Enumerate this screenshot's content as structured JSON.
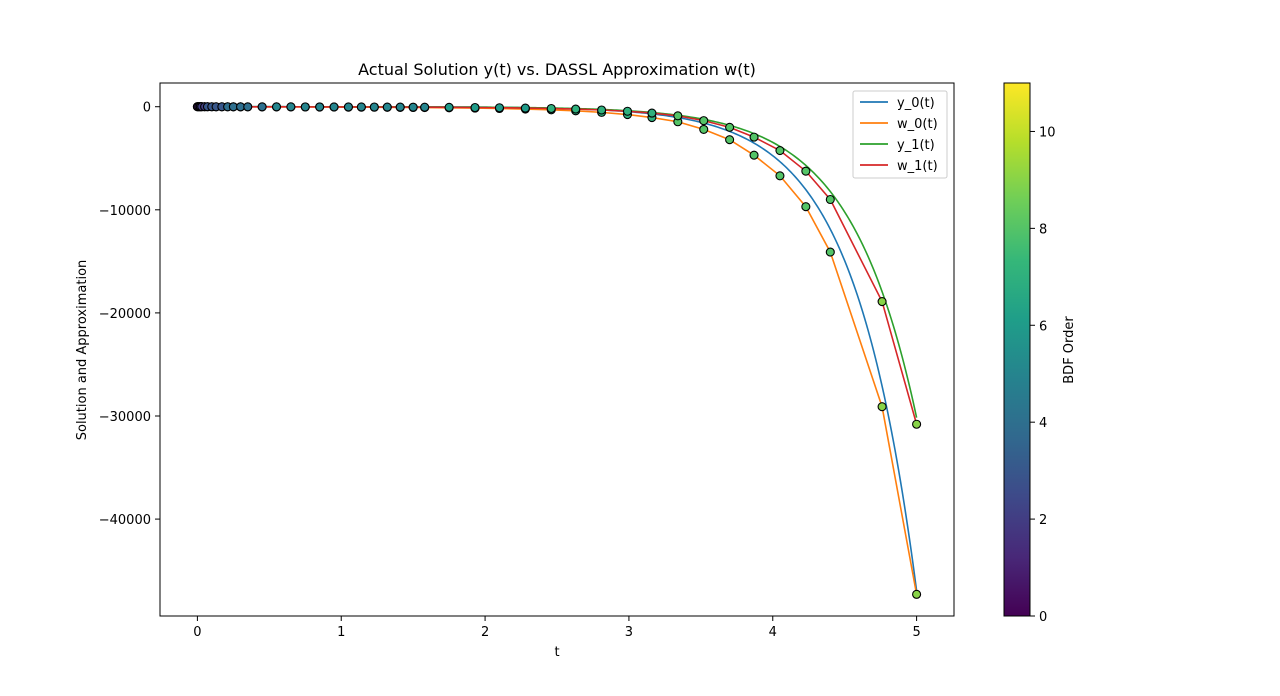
{
  "chart_data": {
    "type": "line",
    "title": "Actual Solution y(t) vs. DASSL Approximation w(t)",
    "xlabel": "t",
    "ylabel": "Solution and Approximation",
    "xlim": [
      -0.26,
      5.26
    ],
    "ylim": [
      -49400,
      2300
    ],
    "xticks": [
      0,
      1,
      2,
      3,
      4,
      5
    ],
    "yticks": [
      0,
      -10000,
      -20000,
      -30000,
      -40000
    ],
    "xtick_labels": [
      "0",
      "1",
      "2",
      "3",
      "4",
      "5"
    ],
    "ytick_labels": [
      "0",
      "−10000",
      "−20000",
      "−30000",
      "−40000"
    ],
    "legend_position": "top-right",
    "series": [
      {
        "name": "y_0(t)",
        "color": "#1f77b4",
        "curve": "y0"
      },
      {
        "name": "w_0(t)",
        "color": "#ff7f0e",
        "curve": "w0"
      },
      {
        "name": "y_1(t)",
        "color": "#2ca02c",
        "curve": "y1"
      },
      {
        "name": "w_1(t)",
        "color": "#d62728",
        "curve": "w1"
      }
    ],
    "steps": {
      "t": [
        0,
        0.01,
        0.02,
        0.03,
        0.05,
        0.07,
        0.1,
        0.13,
        0.17,
        0.21,
        0.25,
        0.3,
        0.35,
        0.45,
        0.55,
        0.65,
        0.75,
        0.85,
        0.95,
        1.05,
        1.14,
        1.23,
        1.32,
        1.41,
        1.5,
        1.58,
        1.75,
        1.93,
        2.1,
        2.28,
        2.46,
        2.63,
        2.81,
        2.99,
        3.16,
        3.34,
        3.52,
        3.7,
        3.87,
        4.05,
        4.23,
        4.4,
        4.76,
        5.0
      ],
      "w0": [
        -1,
        -1,
        -1,
        -2,
        -3,
        -4,
        -5,
        -7,
        -8,
        -10,
        -11,
        -13,
        -15,
        -18,
        -21,
        -24,
        -28,
        -32,
        -37,
        -42,
        -47,
        -53,
        -60,
        -67,
        -76,
        -85,
        -106,
        -135,
        -172,
        -225,
        -298,
        -400,
        -550,
        -760,
        -1050,
        -1460,
        -2200,
        -3200,
        -4700,
        -6700,
        -9700,
        -14100,
        -29100,
        -47300
      ],
      "w1": [
        0,
        0,
        0,
        -1,
        -1,
        -2,
        -3,
        -4,
        -4,
        -5,
        -6,
        -7,
        -8,
        -10,
        -12,
        -14,
        -16,
        -18,
        -20,
        -23,
        -26,
        -29,
        -33,
        -37,
        -42,
        -47,
        -60,
        -77,
        -100,
        -130,
        -172,
        -230,
        -320,
        -440,
        -620,
        -880,
        -1350,
        -2000,
        -2950,
        -4250,
        -6250,
        -9000,
        -18900,
        -30800
      ],
      "order": [
        1,
        1,
        2,
        2,
        2,
        3,
        3,
        3,
        3,
        4,
        4,
        4,
        4,
        4,
        5,
        5,
        5,
        5,
        5,
        5,
        5,
        5,
        5,
        5,
        5,
        5,
        6,
        6,
        6,
        6,
        7,
        7,
        7,
        7,
        7,
        8,
        8,
        8,
        8,
        8,
        8,
        8,
        9,
        9
      ]
    },
    "colorbar": {
      "label": "BDF Order",
      "range": [
        0,
        11
      ],
      "ticks": [
        0,
        2,
        4,
        6,
        8,
        10
      ],
      "tick_labels": [
        "0",
        "2",
        "4",
        "6",
        "8",
        "10"
      ]
    }
  }
}
